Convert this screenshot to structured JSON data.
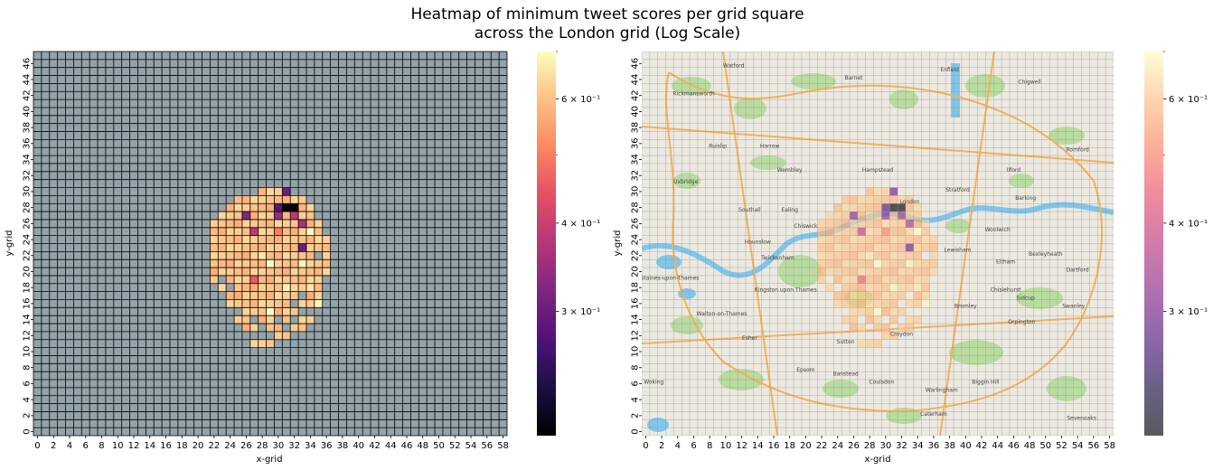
{
  "figure": {
    "title_line1": "Heatmap of minimum tweet scores per grid square",
    "title_line2": "across the London grid (Log Scale)"
  },
  "colors": {
    "missing_cell": "#93a3a9",
    "grid_line": "#000000",
    "map_background": "#ece9e1",
    "map_green": "#b9dca0",
    "map_water": "#7fc6ea",
    "map_road": "#f2b25c"
  },
  "chart_data": [
    {
      "type": "heatmap",
      "panel": "left",
      "xlabel": "x-grid",
      "ylabel": "y-grid",
      "x_range": [
        0,
        58
      ],
      "y_range": [
        0,
        47
      ],
      "x_ticks": [
        "0",
        "2",
        "4",
        "6",
        "8",
        "10",
        "12",
        "14",
        "16",
        "18",
        "20",
        "22",
        "24",
        "26",
        "28",
        "30",
        "32",
        "34",
        "36",
        "38",
        "40",
        "42",
        "44",
        "46",
        "48",
        "50",
        "52",
        "54",
        "56",
        "58"
      ],
      "y_ticks": [
        "0",
        "2",
        "4",
        "6",
        "8",
        "10",
        "12",
        "14",
        "16",
        "18",
        "20",
        "22",
        "24",
        "26",
        "28",
        "30",
        "32",
        "34",
        "36",
        "38",
        "40",
        "42",
        "44",
        "46"
      ],
      "grid": true,
      "colormap": "magma",
      "color_scale": "log",
      "color_range": [
        0.2,
        0.7
      ],
      "colorbar_ticks": [
        "3 × 10⁻¹",
        "4 × 10⁻¹",
        "6 × 10⁻¹"
      ],
      "colorbar_tick_values": [
        0.3,
        0.4,
        0.6
      ],
      "cells_default_value": 0.6,
      "cell_rows": [
        {
          "y": 11,
          "x_from": 27,
          "x_to": 29
        },
        {
          "y": 12,
          "x_from": 30,
          "x_to": 31
        },
        {
          "y": 13,
          "x_from": 26,
          "x_to": 33
        },
        {
          "y": 14,
          "x_from": 25,
          "x_to": 34
        },
        {
          "y": 15,
          "x_from": 25,
          "x_to": 34
        },
        {
          "y": 16,
          "x_from": 24,
          "x_to": 35
        },
        {
          "y": 17,
          "x_from": 24,
          "x_to": 35
        },
        {
          "y": 18,
          "x_from": 22,
          "x_to": 35
        },
        {
          "y": 19,
          "x_from": 22,
          "x_to": 35
        },
        {
          "y": 20,
          "x_from": 22,
          "x_to": 36
        },
        {
          "y": 21,
          "x_from": 22,
          "x_to": 36
        },
        {
          "y": 22,
          "x_from": 22,
          "x_to": 36
        },
        {
          "y": 23,
          "x_from": 22,
          "x_to": 36
        },
        {
          "y": 24,
          "x_from": 22,
          "x_to": 36
        },
        {
          "y": 25,
          "x_from": 22,
          "x_to": 35
        },
        {
          "y": 26,
          "x_from": 22,
          "x_to": 35
        },
        {
          "y": 27,
          "x_from": 23,
          "x_to": 34
        },
        {
          "y": 28,
          "x_from": 24,
          "x_to": 34
        },
        {
          "y": 29,
          "x_from": 25,
          "x_to": 33
        },
        {
          "y": 30,
          "x_from": 28,
          "x_to": 31
        }
      ],
      "cell_overrides": [
        {
          "x": 31,
          "y": 28,
          "value": 0.2
        },
        {
          "x": 32,
          "y": 28,
          "value": 0.2
        },
        {
          "x": 30,
          "y": 28,
          "value": 0.28
        },
        {
          "x": 31,
          "y": 30,
          "value": 0.3
        },
        {
          "x": 26,
          "y": 27,
          "value": 0.32
        },
        {
          "x": 30,
          "y": 27,
          "value": 0.34
        },
        {
          "x": 32,
          "y": 27,
          "value": 0.38
        },
        {
          "x": 33,
          "y": 26,
          "value": 0.36
        },
        {
          "x": 27,
          "y": 25,
          "value": 0.38
        },
        {
          "x": 33,
          "y": 23,
          "value": 0.3
        },
        {
          "x": 27,
          "y": 19,
          "value": 0.45
        },
        {
          "x": 30,
          "y": 25,
          "value": 0.5
        },
        {
          "x": 34,
          "y": 25,
          "value": 0.7
        },
        {
          "x": 33,
          "y": 21,
          "value": 0.68
        },
        {
          "x": 31,
          "y": 18,
          "value": 0.68
        },
        {
          "x": 29,
          "y": 15,
          "value": 0.7
        },
        {
          "x": 29,
          "y": 21,
          "value": 0.7
        },
        {
          "x": 35,
          "y": 16,
          "value": 0.69
        },
        {
          "x": 28,
          "y": 22,
          "value": 0.66
        },
        {
          "x": 34,
          "y": 18,
          "value": 0.66
        }
      ],
      "cell_missing": [
        {
          "x": 22,
          "y": 18
        },
        {
          "x": 24,
          "y": 18
        },
        {
          "x": 27,
          "y": 14
        },
        {
          "x": 30,
          "y": 14
        },
        {
          "x": 32,
          "y": 14
        },
        {
          "x": 33,
          "y": 15
        },
        {
          "x": 28,
          "y": 13
        },
        {
          "x": 31,
          "y": 13
        },
        {
          "x": 25,
          "y": 15
        },
        {
          "x": 34,
          "y": 15
        },
        {
          "x": 33,
          "y": 17
        },
        {
          "x": 23,
          "y": 19
        },
        {
          "x": 35,
          "y": 22
        },
        {
          "x": 32,
          "y": 16
        }
      ]
    },
    {
      "type": "heatmap",
      "panel": "right",
      "overlay": "map of London",
      "xlabel": "x-grid",
      "ylabel": "y-grid",
      "x_range": [
        0,
        58
      ],
      "y_range": [
        0,
        47
      ],
      "x_ticks": [
        "0",
        "2",
        "4",
        "6",
        "8",
        "10",
        "12",
        "14",
        "16",
        "18",
        "20",
        "22",
        "24",
        "26",
        "28",
        "30",
        "32",
        "34",
        "36",
        "38",
        "40",
        "42",
        "44",
        "46",
        "48",
        "50",
        "52",
        "54",
        "56",
        "58"
      ],
      "y_ticks": [
        "0",
        "2",
        "4",
        "6",
        "8",
        "10",
        "12",
        "14",
        "16",
        "18",
        "20",
        "22",
        "24",
        "26",
        "28",
        "30",
        "32",
        "34",
        "36",
        "38",
        "40",
        "42",
        "44",
        "46"
      ],
      "grid": true,
      "colormap": "magma",
      "color_scale": "log",
      "alpha": 0.65,
      "colorbar_ticks": [
        "3 × 10⁻¹",
        "4 × 10⁻¹",
        "6 × 10⁻¹"
      ],
      "colorbar_tick_values": [
        0.3,
        0.4,
        0.6
      ],
      "same_data_as": "left",
      "map_labels": [
        {
          "text": "Watford",
          "x": 11,
          "y": 45.5
        },
        {
          "text": "Barnet",
          "x": 26,
          "y": 44
        },
        {
          "text": "Enfield",
          "x": 38,
          "y": 45
        },
        {
          "text": "Chigwell",
          "x": 48,
          "y": 43.5
        },
        {
          "text": "Rickmansworth",
          "x": 6,
          "y": 42
        },
        {
          "text": "Harrow",
          "x": 15.5,
          "y": 35.5
        },
        {
          "text": "Ruislip",
          "x": 9,
          "y": 35.5
        },
        {
          "text": "Wembley",
          "x": 18,
          "y": 32.5
        },
        {
          "text": "Hampstead",
          "x": 29,
          "y": 32.5
        },
        {
          "text": "Ilford",
          "x": 46,
          "y": 32.5
        },
        {
          "text": "Romford",
          "x": 54,
          "y": 35
        },
        {
          "text": "Uxbridge",
          "x": 5,
          "y": 31
        },
        {
          "text": "Ealing",
          "x": 18,
          "y": 27.5
        },
        {
          "text": "Southall",
          "x": 13,
          "y": 27.5
        },
        {
          "text": "London",
          "x": 33,
          "y": 28.5
        },
        {
          "text": "Stratford",
          "x": 39,
          "y": 30
        },
        {
          "text": "Barking",
          "x": 47.5,
          "y": 29
        },
        {
          "text": "Chiswick",
          "x": 20,
          "y": 25.5
        },
        {
          "text": "Woolwich",
          "x": 44,
          "y": 25
        },
        {
          "text": "Hounslow",
          "x": 14,
          "y": 23.5
        },
        {
          "text": "Lewisham",
          "x": 39,
          "y": 22.5
        },
        {
          "text": "Bexleyheath",
          "x": 50,
          "y": 22
        },
        {
          "text": "Eltham",
          "x": 45,
          "y": 21
        },
        {
          "text": "Dartford",
          "x": 54,
          "y": 20
        },
        {
          "text": "Twickenham",
          "x": 16.5,
          "y": 21.5
        },
        {
          "text": "Staines-upon-Thames",
          "x": 3,
          "y": 19
        },
        {
          "text": "Kingston upon Thames",
          "x": 17.5,
          "y": 17.5
        },
        {
          "text": "Chislehurst",
          "x": 45,
          "y": 17.5
        },
        {
          "text": "Sidcup",
          "x": 47.5,
          "y": 16.5
        },
        {
          "text": "Swanley",
          "x": 53.5,
          "y": 15.5
        },
        {
          "text": "Bromley",
          "x": 40,
          "y": 15.5
        },
        {
          "text": "Orpington",
          "x": 47,
          "y": 13.5
        },
        {
          "text": "Walton-on-Thames",
          "x": 9.5,
          "y": 14.5
        },
        {
          "text": "Esher",
          "x": 13,
          "y": 11.5
        },
        {
          "text": "Sutton",
          "x": 25,
          "y": 11
        },
        {
          "text": "Croydon",
          "x": 32,
          "y": 12
        },
        {
          "text": "Woking",
          "x": 1,
          "y": 6
        },
        {
          "text": "Epsom",
          "x": 20,
          "y": 7.5
        },
        {
          "text": "Banstead",
          "x": 25,
          "y": 7
        },
        {
          "text": "Coulsdon",
          "x": 29.5,
          "y": 6
        },
        {
          "text": "Warlingham",
          "x": 37,
          "y": 5
        },
        {
          "text": "Biggin Hill",
          "x": 42.5,
          "y": 6
        },
        {
          "text": "Caterham",
          "x": 36,
          "y": 2
        },
        {
          "text": "Sevenoaks",
          "x": 54.5,
          "y": 1.5
        }
      ]
    }
  ]
}
